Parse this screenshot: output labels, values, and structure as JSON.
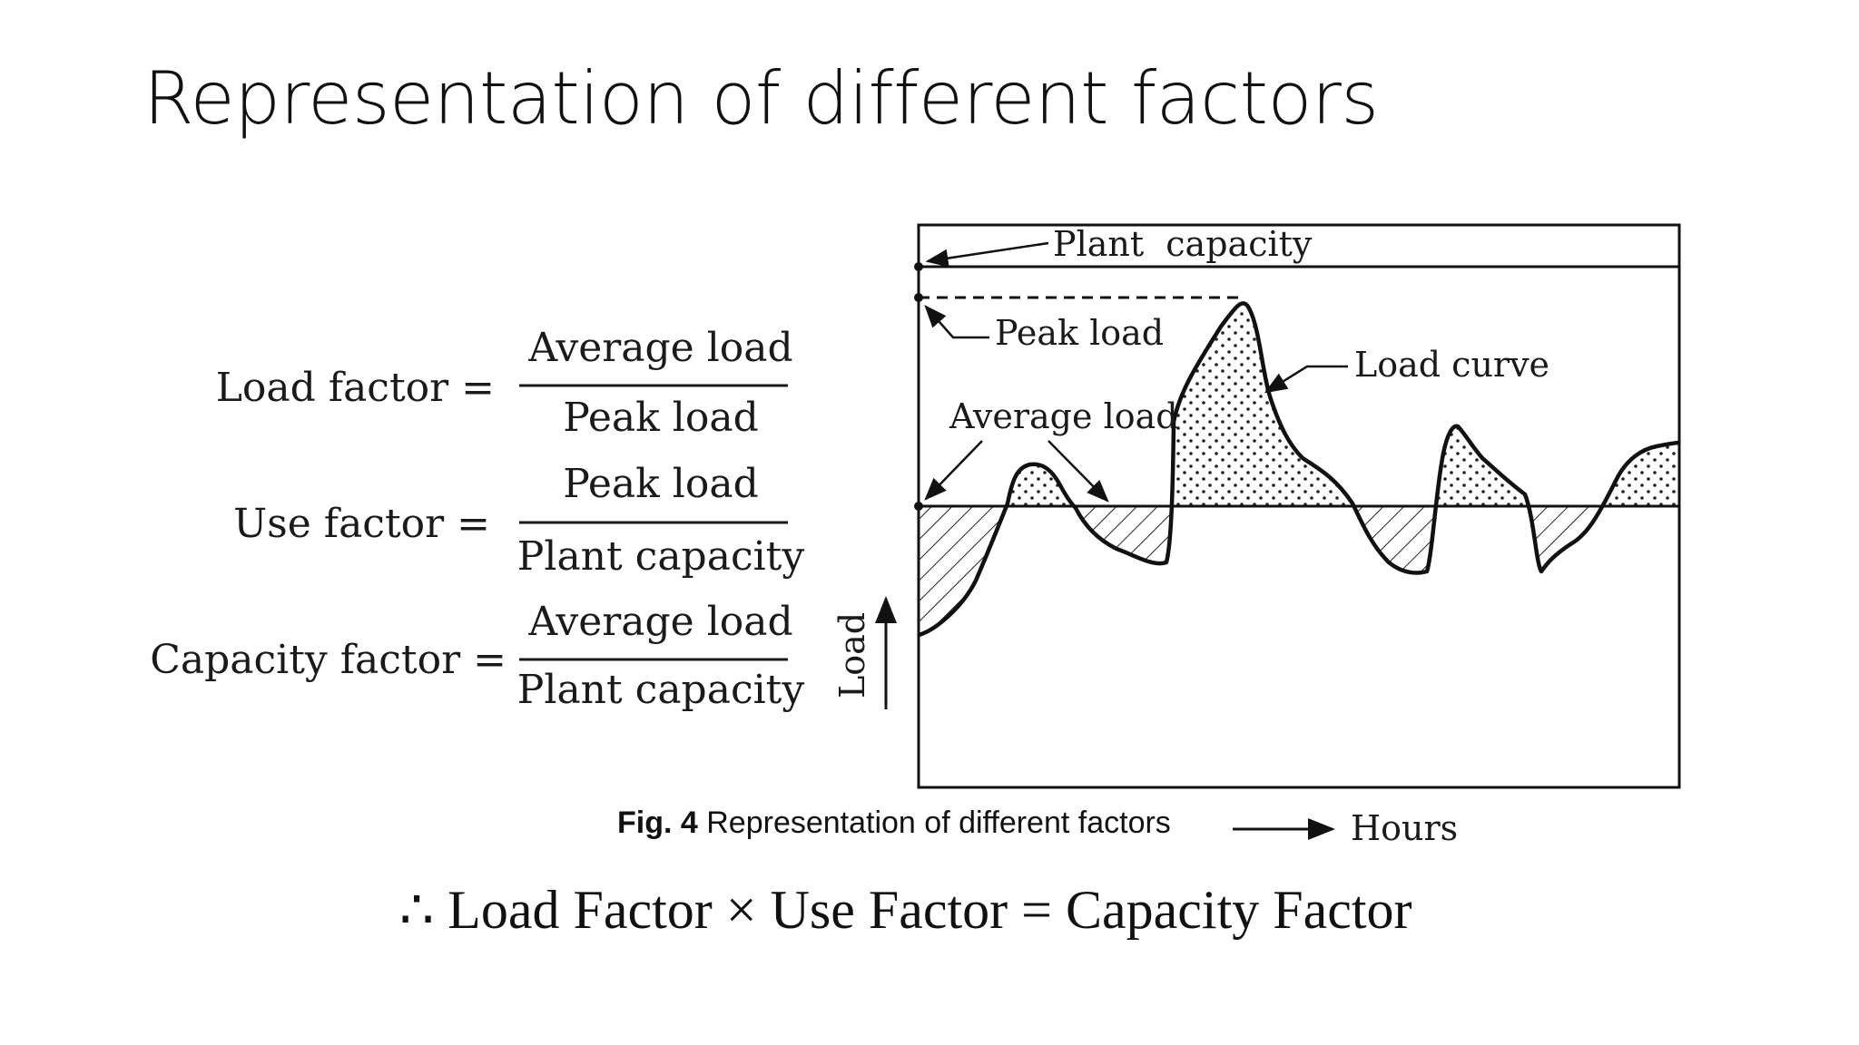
{
  "slide": {
    "title": "Representation of different factors"
  },
  "formulas": [
    {
      "name": "Load factor =",
      "numerator": "Average load",
      "denominator": "Peak load"
    },
    {
      "name": "Use factor =",
      "numerator": "Peak load",
      "denominator": "Plant capacity"
    },
    {
      "name": "Capacity factor =",
      "numerator": "Average load",
      "denominator": "Plant capacity"
    }
  ],
  "diagram": {
    "labels": {
      "plant_capacity": "Plant  capacity",
      "peak_load": "Peak load",
      "load_curve": "Load curve",
      "average_load": "Average load",
      "y_axis": "Load",
      "x_axis": "Hours"
    }
  },
  "caption": {
    "fig_number": "Fig. 4",
    "text": " Representation of different factors"
  },
  "conclusion": {
    "text": "∴ Load Factor × Use Factor = Capacity Factor"
  }
}
